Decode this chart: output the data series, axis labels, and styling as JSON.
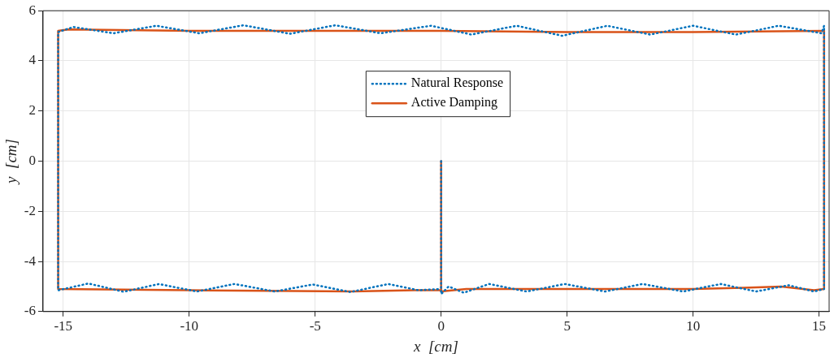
{
  "chart_data": {
    "type": "line",
    "xlabel": "x  [cm]",
    "ylabel": "y  [cm]",
    "xlim": [
      -15.8,
      15.4
    ],
    "xticks": [
      -15,
      -10,
      -5,
      0,
      5,
      10,
      15
    ],
    "ylim": [
      -6,
      6
    ],
    "yticks": [
      -6,
      -4,
      -2,
      0,
      2,
      4,
      6
    ],
    "grid": true,
    "legend": "top",
    "marker": "none",
    "series": [
      {
        "name": "Natural Response",
        "color": "#0072bd",
        "line_style": "dotted",
        "x": [
          0,
          0,
          0.3,
          0.9,
          1.9,
          3.4,
          4.9,
          6.5,
          8.0,
          9.6,
          11.1,
          12.5,
          13.8,
          14.8,
          15.2,
          15.2,
          15.2,
          15.1,
          13.4,
          11.7,
          10.0,
          8.3,
          6.6,
          4.8,
          3.0,
          1.2,
          -0.4,
          -2.4,
          -4.2,
          -6.0,
          -7.85,
          -9.6,
          -11.3,
          -13.0,
          -14.6,
          -15.2,
          -15.2,
          -14.0,
          -12.6,
          -11.2,
          -9.7,
          -8.2,
          -6.6,
          -5.1,
          -3.6,
          -2.1,
          -0.9,
          0
        ],
        "values": [
          0,
          -5.3,
          -5.0,
          -5.25,
          -4.9,
          -5.2,
          -4.9,
          -5.2,
          -4.9,
          -5.2,
          -4.9,
          -5.2,
          -4.95,
          -5.2,
          -5.1,
          5.2,
          5.4,
          5.1,
          5.4,
          5.05,
          5.4,
          5.05,
          5.4,
          5.0,
          5.4,
          5.05,
          5.4,
          5.1,
          5.42,
          5.08,
          5.42,
          5.1,
          5.4,
          5.1,
          5.35,
          5.15,
          -5.15,
          -4.88,
          -5.21,
          -4.9,
          -5.2,
          -4.9,
          -5.2,
          -4.92,
          -5.22,
          -4.9,
          -5.15,
          -5.1
        ]
      },
      {
        "name": "Active Damping",
        "color": "#d95319",
        "line_style": "solid",
        "x": [
          0,
          0,
          1,
          5,
          10,
          12,
          13.5,
          14.8,
          15.2,
          15.2,
          10,
          5,
          0,
          -5,
          -10,
          -14.8,
          -15.2,
          -15.2,
          -10,
          -3.5,
          -1,
          0
        ],
        "values": [
          0,
          -5.2,
          -5.1,
          -5.1,
          -5.1,
          -5.05,
          -5.0,
          -5.15,
          -5.1,
          5.2,
          5.15,
          5.15,
          5.2,
          5.2,
          5.2,
          5.25,
          5.2,
          -5.1,
          -5.15,
          -5.2,
          -5.15,
          -5.15
        ]
      }
    ]
  }
}
